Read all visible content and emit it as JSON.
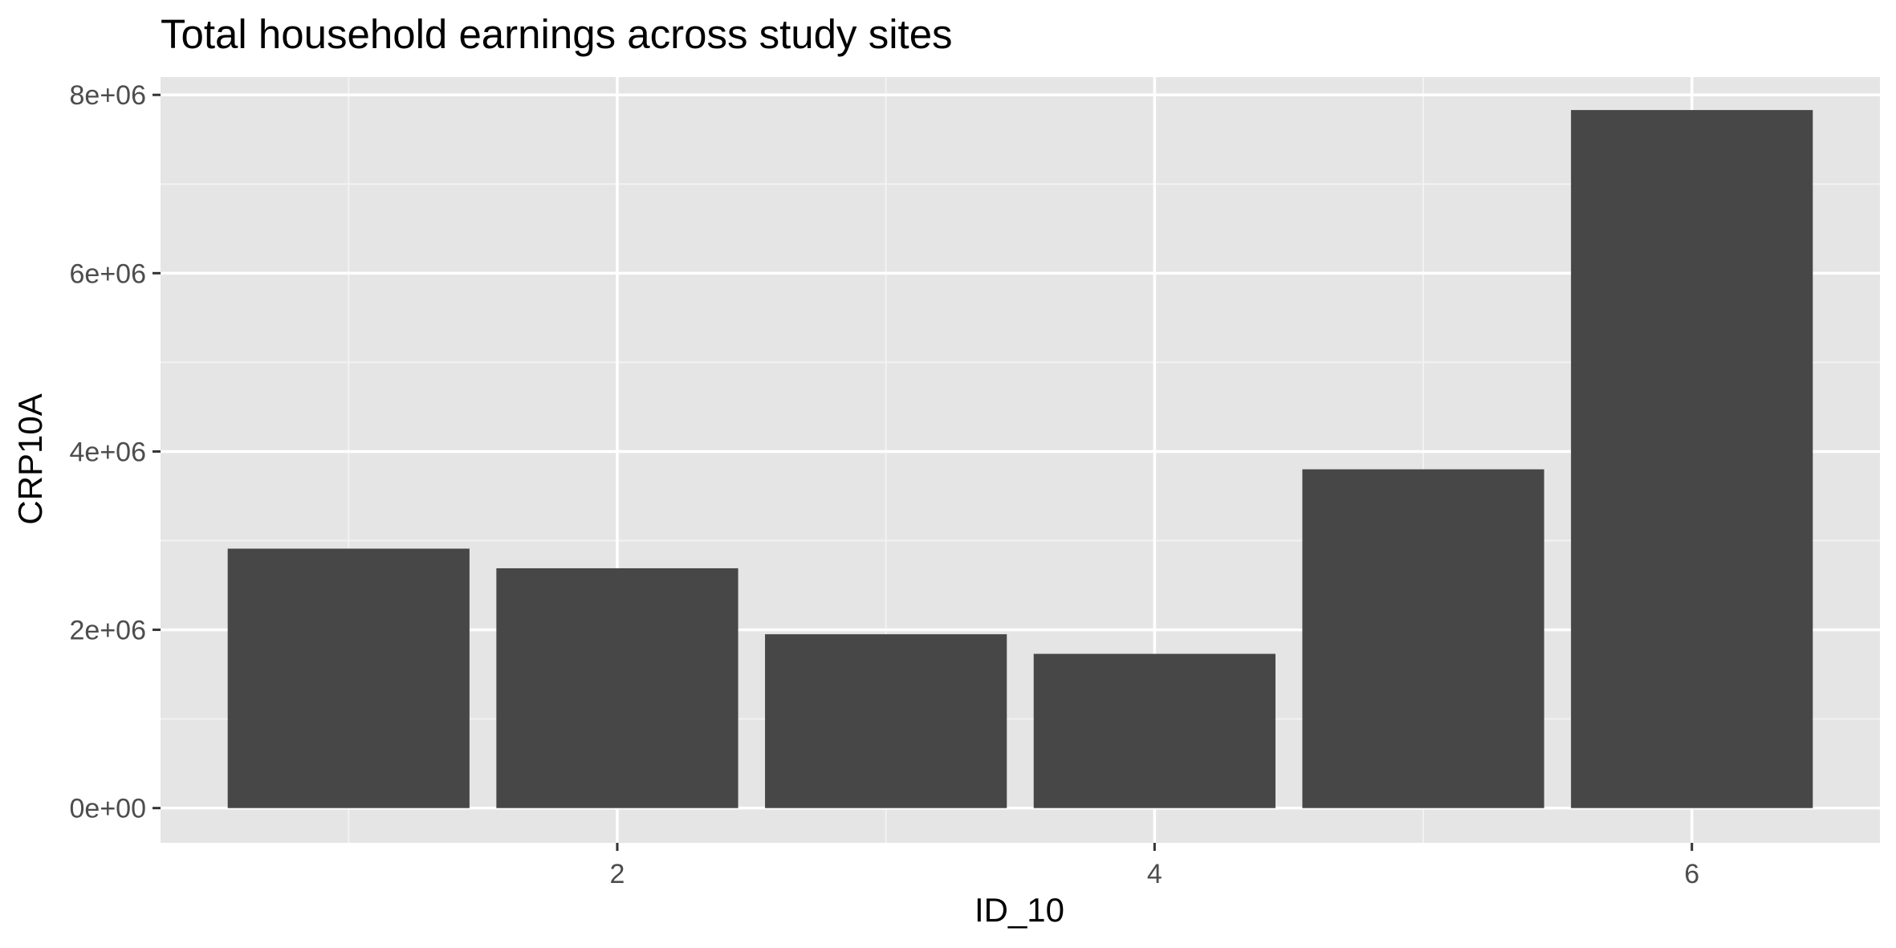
{
  "chart_data": {
    "type": "bar",
    "title": "Total household earnings across study sites",
    "xlabel": "ID_10",
    "ylabel": "CRP10A",
    "x": [
      1,
      2,
      3,
      4,
      5,
      6
    ],
    "values": [
      2910000,
      2690000,
      1950000,
      1730000,
      3800000,
      7830000
    ],
    "xlim": [
      0.3,
      6.7
    ],
    "ylim": [
      -390000,
      8200000
    ],
    "x_ticks": [
      2,
      4,
      6
    ],
    "x_tick_labels": [
      "2",
      "4",
      "6"
    ],
    "y_ticks": [
      0,
      2000000,
      4000000,
      6000000,
      8000000
    ],
    "y_tick_labels": [
      "0e+00",
      "2e+06",
      "4e+06",
      "6e+06",
      "8e+06"
    ],
    "grid": true,
    "legend": "none",
    "colors": {
      "bar": "#474747",
      "panel": "#e5e5e5",
      "grid_major": "#ffffff",
      "grid_minor": "#f2f2f2",
      "tick_text": "#4d4d4d",
      "tick_mark": "#333333"
    }
  }
}
